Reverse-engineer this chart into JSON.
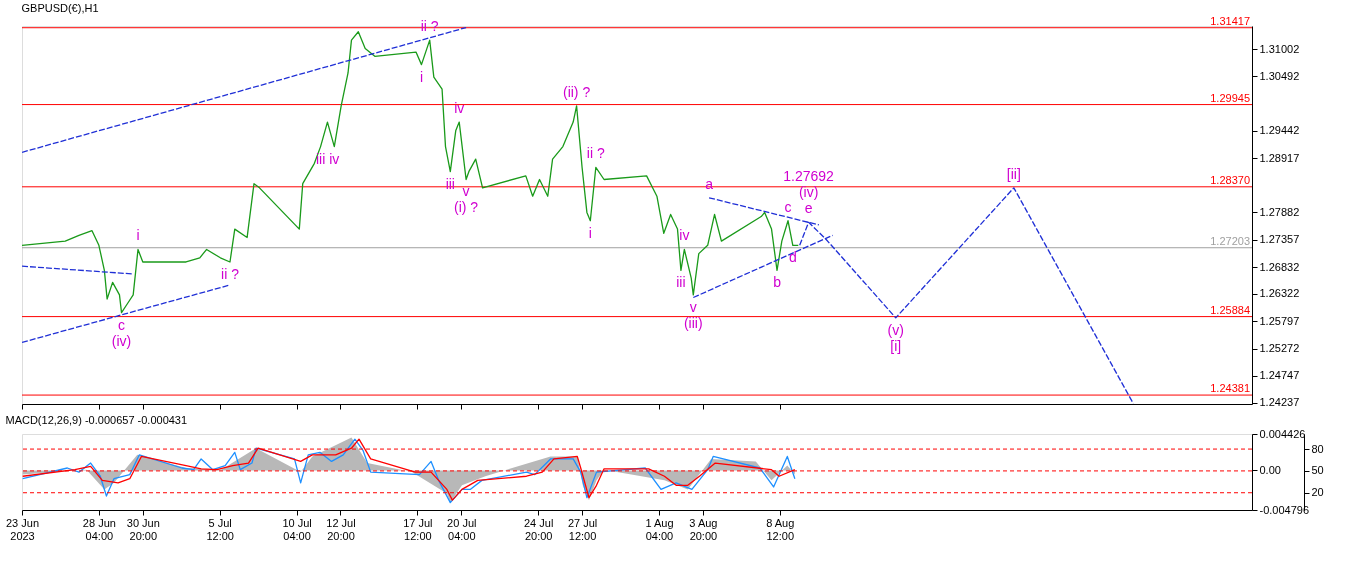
{
  "chart_data": [
    {
      "type": "line",
      "title": "GBPUSD(€),H1",
      "tick_labels": "y",
      "xlim": [
        "2023-06-23T12:00",
        "2023-09-06T04:00"
      ],
      "ylim": [
        1.2421,
        1.3145
      ],
      "xticks": [
        {
          "value": "2023-06-23T12:00",
          "label": null
        },
        {
          "value": "2023-06-28T04:00",
          "label": null
        },
        {
          "value": "2023-06-30T20:00",
          "label": null
        },
        {
          "value": "2023-07-05T12:00",
          "label": null
        },
        {
          "value": "2023-07-10T04:00",
          "label": null
        },
        {
          "value": "2023-07-12T20:00",
          "label": null
        },
        {
          "value": "2023-07-17T12:00",
          "label": null
        },
        {
          "value": "2023-07-20T04:00",
          "label": null
        },
        {
          "value": "2023-07-24T20:00",
          "label": null
        },
        {
          "value": "2023-07-27T12:00",
          "label": null
        },
        {
          "value": "2023-08-01T04:00",
          "label": null
        },
        {
          "value": "2023-08-03T20:00",
          "label": null
        },
        {
          "value": "2023-08-08T12:00",
          "label": null
        }
      ],
      "yticks": [
        1.31002,
        1.30492,
        1.29442,
        1.28917,
        1.27882,
        1.27357,
        1.26832,
        1.26322,
        1.25797,
        1.25272,
        1.24747,
        1.24237
      ],
      "series": [
        {
          "color": "#1a9a1a",
          "x": [
            "2023-06-23T12:00",
            "2023-06-26T03:00",
            "2023-06-26T23:00",
            "2023-06-27T18:00",
            "2023-06-28T04:00",
            "2023-06-28T12:00",
            "2023-06-28T16:00",
            "2023-06-29T00:00",
            "2023-06-29T10:00",
            "2023-06-29T13:00",
            "2023-06-29T22:00",
            "2023-06-30T06:00",
            "2023-06-30T13:00",
            "2023-06-30T20:00",
            "2023-07-03T11:00",
            "2023-07-04T07:00",
            "2023-07-04T17:00",
            "2023-07-05T13:00",
            "2023-07-06T03:00",
            "2023-07-06T10:00",
            "2023-07-07T04:00",
            "2023-07-07T14:00",
            "2023-07-07T22:00",
            "2023-07-10T08:00",
            "2023-07-10T13:00",
            "2023-07-11T06:00",
            "2023-07-11T15:00",
            "2023-07-12T01:00",
            "2023-07-12T11:00",
            "2023-07-12T21:00",
            "2023-07-13T07:00",
            "2023-07-13T12:00",
            "2023-07-13T22:00",
            "2023-07-14T08:00",
            "2023-07-14T22:00",
            "2023-07-17T10:00",
            "2023-07-17T18:00",
            "2023-07-18T06:00",
            "2023-07-18T12:00",
            "2023-07-19T00:00",
            "2023-07-19T05:00",
            "2023-07-19T12:00",
            "2023-07-19T20:00",
            "2023-07-20T01:00",
            "2023-07-20T11:00",
            "2023-07-20T15:00",
            "2023-07-21T01:00",
            "2023-07-21T11:00",
            "2023-07-24T02:00",
            "2023-07-24T12:00",
            "2023-07-24T22:00",
            "2023-07-25T10:00",
            "2023-07-25T17:00",
            "2023-07-26T08:00",
            "2023-07-26T23:00",
            "2023-07-27T04:00",
            "2023-07-27T12:00",
            "2023-07-27T19:00",
            "2023-07-28T00:00",
            "2023-07-28T08:00",
            "2023-07-28T20:00",
            "2023-07-31T10:00",
            "2023-08-01T01:00",
            "2023-08-01T11:00",
            "2023-08-01T21:00",
            "2023-08-02T07:00",
            "2023-08-02T12:00",
            "2023-08-02T17:00",
            "2023-08-03T03:00",
            "2023-08-03T06:00",
            "2023-08-03T14:00",
            "2023-08-04T03:00",
            "2023-08-04T13:00",
            "2023-08-04T23:00",
            "2023-08-07T09:00",
            "2023-08-07T14:00",
            "2023-08-08T00:00",
            "2023-08-08T08:00",
            "2023-08-08T15:00",
            "2023-08-09T00:00",
            "2023-08-09T07:00",
            "2023-08-09T15:00"
          ],
          "values": [
            1.2725,
            1.2733,
            1.2744,
            1.2753,
            1.2725,
            1.2677,
            1.2622,
            1.2654,
            1.263,
            1.2596,
            1.2614,
            1.263,
            1.2717,
            1.2693,
            1.2693,
            1.2701,
            1.2717,
            1.2701,
            1.2693,
            1.2756,
            1.274,
            1.2843,
            1.2835,
            1.2756,
            1.2843,
            1.2882,
            1.2914,
            1.2961,
            1.2914,
            1.2992,
            1.3055,
            1.3118,
            1.3134,
            1.3102,
            1.3087,
            1.3095,
            1.3071,
            1.3118,
            1.3047,
            1.3024,
            1.2914,
            1.2866,
            1.2945,
            1.2961,
            1.2851,
            1.2866,
            1.289,
            1.2835,
            1.2858,
            1.2819,
            1.2851,
            1.2819,
            1.289,
            1.2914,
            1.2961,
            1.2992,
            1.2874,
            1.2788,
            1.2772,
            1.2874,
            1.2851,
            1.2858,
            1.2819,
            1.2748,
            1.2784,
            1.2756,
            1.2677,
            1.2717,
            1.2662,
            1.263,
            1.2709,
            1.2725,
            1.2784,
            1.2733,
            1.278,
            1.2788,
            1.2756,
            1.2677,
            1.2733,
            1.2772,
            1.2725,
            1.2725
          ]
        },
        {
          "color": "#1f2fd6",
          "line_style": "dashed",
          "x": [
            "2023-08-09T17:00",
            "2023-08-10T06:00",
            "2023-08-11T07:00",
            "2023-08-15T13:00",
            "2023-08-22T17:00",
            "2023-08-29T23:00"
          ],
          "values": [
            1.2725,
            1.2769,
            1.2737,
            1.2586,
            1.2835,
            1.2422
          ]
        },
        {
          "color": "#1f2fd6",
          "line_style": "dashed",
          "x": [
            "2023-06-23T12:00",
            "2023-07-20T11:00"
          ],
          "values": [
            1.2903,
            1.3142
          ]
        },
        {
          "color": "#1f2fd6",
          "line_style": "dashed",
          "x": [
            "2023-06-23T12:00",
            "2023-06-30T06:00"
          ],
          "values": [
            1.2685,
            1.267
          ]
        },
        {
          "color": "#1f2fd6",
          "line_style": "dashed",
          "x": [
            "2023-06-23T12:00",
            "2023-07-06T03:00"
          ],
          "values": [
            1.2539,
            1.2649
          ]
        },
        {
          "color": "#1f2fd6",
          "line_style": "dashed",
          "x": [
            "2023-08-04T05:00",
            "2023-08-10T21:00"
          ],
          "values": [
            1.2816,
            1.2764
          ]
        },
        {
          "color": "#1f2fd6",
          "line_style": "dashed",
          "x": [
            "2023-08-03T06:00",
            "2023-08-11T17:00"
          ],
          "values": [
            1.2625,
            1.2744
          ]
        }
      ],
      "ref_lines": [
        {
          "axis": "y",
          "value": 1.31417,
          "label": "1.31417",
          "color": "#ff0000"
        },
        {
          "axis": "y",
          "value": 1.29945,
          "label": "1.29945",
          "color": "#ff0000"
        },
        {
          "axis": "y",
          "value": 1.2837,
          "label": "1.28370",
          "color": "#ff0000"
        },
        {
          "axis": "y",
          "value": 1.27203,
          "label": "1.27203",
          "color": "#a0a0a0"
        },
        {
          "axis": "y",
          "value": 1.25884,
          "label": "1.25884",
          "color": "#ff0000"
        },
        {
          "axis": "y",
          "value": 1.24381,
          "label": "1.24381",
          "color": "#ff0000"
        }
      ],
      "annotations": [
        {
          "text": "i",
          "x": "2023-06-30T13:00",
          "y": 1.2717
        },
        {
          "text": "ii ?",
          "x": "2023-07-06T03:00",
          "y": 1.2693
        },
        {
          "text": "c",
          "x": "2023-06-29T13:00",
          "y": 1.2596
        },
        {
          "text": "(iv)",
          "x": "2023-06-29T13:00",
          "y": 1.2596
        },
        {
          "text": "iii",
          "x": "2023-07-11T15:00",
          "y": 1.2914
        },
        {
          "text": "iv",
          "x": "2023-07-12T11:00",
          "y": 1.2914
        },
        {
          "text": "i",
          "x": "2023-07-17T18:00",
          "y": 1.3071
        },
        {
          "text": "ii ?",
          "x": "2023-07-18T06:00",
          "y": 1.3118
        },
        {
          "text": "iii",
          "x": "2023-07-19T12:00",
          "y": 1.2866
        },
        {
          "text": "iv",
          "x": "2023-07-20T01:00",
          "y": 1.2961
        },
        {
          "text": "v",
          "x": "2023-07-20T11:00",
          "y": 1.2851
        },
        {
          "text": "(i) ?",
          "x": "2023-07-20T11:00",
          "y": 1.2851
        },
        {
          "text": "(ii) ?",
          "x": "2023-07-27T04:00",
          "y": 1.2992
        },
        {
          "text": "i",
          "x": "2023-07-28T00:00",
          "y": 1.2772
        },
        {
          "text": "ii ?",
          "x": "2023-07-28T08:00",
          "y": 1.2874
        },
        {
          "text": "iii",
          "x": "2023-08-02T12:00",
          "y": 1.2677
        },
        {
          "text": "iv",
          "x": "2023-08-02T17:00",
          "y": 1.2717
        },
        {
          "text": "v",
          "x": "2023-08-03T06:00",
          "y": 1.263
        },
        {
          "text": "(iii)",
          "x": "2023-08-03T06:00",
          "y": 1.263
        },
        {
          "text": "a",
          "x": "2023-08-04T05:00",
          "y": 1.2816
        },
        {
          "text": "b",
          "x": "2023-08-08T08:00",
          "y": 1.2677
        },
        {
          "text": "c",
          "x": "2023-08-09T00:00",
          "y": 1.2772
        },
        {
          "text": "d",
          "x": "2023-08-09T07:00",
          "y": 1.2725
        },
        {
          "text": "e",
          "x": "2023-08-10T06:00",
          "y": 1.2769
        },
        {
          "text": "(iv)",
          "x": "2023-08-10T06:00",
          "y": 1.2769
        },
        {
          "text": "1.27692",
          "x": "2023-08-10T06:00",
          "y": 1.2769
        },
        {
          "text": "(v)",
          "x": "2023-08-15T13:00",
          "y": 1.2586
        },
        {
          "text": "[i]",
          "x": "2023-08-15T13:00",
          "y": 1.2586
        },
        {
          "text": "[ii]",
          "x": "2023-08-22T17:00",
          "y": 1.2835
        }
      ]
    },
    {
      "type": "line",
      "title": "MACD(12,26,9) -0.000657 -0.000431",
      "xlim": [
        "2023-06-23T12:00",
        "2023-09-06T04:00"
      ],
      "ylim": [
        -0.004796,
        0.004426
      ],
      "y2lim": [
        -3.7,
        100.7
      ],
      "xticks": [
        {
          "value": "2023-06-23T12:00",
          "label": "23 Jun 2023"
        },
        {
          "value": "2023-06-28T04:00",
          "label": "28 Jun 04:00"
        },
        {
          "value": "2023-06-30T20:00",
          "label": "30 Jun 20:00"
        },
        {
          "value": "2023-07-05T12:00",
          "label": "5 Jul 12:00"
        },
        {
          "value": "2023-07-10T04:00",
          "label": "10 Jul 04:00"
        },
        {
          "value": "2023-07-12T20:00",
          "label": "12 Jul 20:00"
        },
        {
          "value": "2023-07-17T12:00",
          "label": "17 Jul 12:00"
        },
        {
          "value": "2023-07-20T04:00",
          "label": "20 Jul 04:00"
        },
        {
          "value": "2023-07-24T20:00",
          "label": "24 Jul 20:00"
        },
        {
          "value": "2023-07-27T12:00",
          "label": "27 Jul 12:00"
        },
        {
          "value": "2023-08-01T04:00",
          "label": "1 Aug 04:00"
        },
        {
          "value": "2023-08-03T20:00",
          "label": "3 Aug 20:00"
        },
        {
          "value": "2023-08-08T12:00",
          "label": "8 Aug 12:00"
        }
      ],
      "yticks": [
        0.004426,
        {
          "value": 0,
          "label": "0.00"
        },
        -0.004796
      ],
      "y2ticks": [
        80,
        50,
        20
      ],
      "series": [
        {
          "type": "area",
          "color": "#b8b8b8",
          "x": [
            "2023-06-23T13:00",
            "2023-06-27T10:00",
            "2023-06-28T12:00",
            "2023-06-29T02:00",
            "2023-06-30T12:00",
            "2023-07-03T11:00",
            "2023-07-05T14:00",
            "2023-07-07T17:00",
            "2023-07-10T10:00",
            "2023-07-11T03:00",
            "2023-07-13T12:00",
            "2023-07-14T11:00",
            "2023-07-17T04:00",
            "2023-07-19T07:00",
            "2023-07-19T12:00",
            "2023-07-20T05:00",
            "2023-07-21T15:00",
            "2023-07-25T14:00",
            "2023-07-27T05:00",
            "2023-07-27T13:00",
            "2023-07-27T22:00",
            "2023-07-28T09:00",
            "2023-07-28T20:00",
            "2023-08-01T12:00",
            "2023-08-02T22:00",
            "2023-08-04T08:00",
            "2023-08-07T01:00",
            "2023-08-08T00:00",
            "2023-08-08T23:00",
            "2023-08-09T10:00"
          ],
          "values": [
            -0.0005,
            0.0001,
            -0.0023,
            -0.0015,
            0.0019,
            0.0003,
            0.0001,
            0.0027,
            -0.0002,
            0.0017,
            0.004,
            0.0009,
            -0.0002,
            -0.0028,
            -0.0039,
            -0.0018,
            -0.0007,
            0.0017,
            0.0017,
            -0.0018,
            -0.0036,
            -0.0012,
            0.0001,
            -0.0012,
            -0.0023,
            0.0014,
            0.0011,
            -0.0012,
            0.0006,
            -0.0005
          ]
        },
        {
          "color": "#1e90ff",
          "x": [
            "2023-06-23T13:00",
            "2023-06-26T06:00",
            "2023-06-26T23:00",
            "2023-06-27T16:00",
            "2023-06-28T06:00",
            "2023-06-28T15:00",
            "2023-06-29T02:00",
            "2023-06-30T01:00",
            "2023-06-30T15:00",
            "2023-07-03T05:00",
            "2023-07-03T22:00",
            "2023-07-04T09:00",
            "2023-07-05T02:00",
            "2023-07-05T20:00",
            "2023-07-06T10:00",
            "2023-07-06T18:00",
            "2023-07-07T11:00",
            "2023-07-07T17:00",
            "2023-07-10T01:00",
            "2023-07-10T10:00",
            "2023-07-10T21:00",
            "2023-07-11T14:00",
            "2023-07-12T07:00",
            "2023-07-13T00:00",
            "2023-07-13T17:00",
            "2023-07-14T05:00",
            "2023-07-14T16:00",
            "2023-07-17T15:00",
            "2023-07-18T08:00",
            "2023-07-18T19:00",
            "2023-07-19T12:00",
            "2023-07-20T05:00",
            "2023-07-20T17:00",
            "2023-07-21T10:00",
            "2023-07-24T03:00",
            "2023-07-24T15:00",
            "2023-07-25T14:00",
            "2023-07-26T23:00",
            "2023-07-27T10:00",
            "2023-07-27T19:00",
            "2023-07-28T09:00",
            "2023-07-31T08:00",
            "2023-08-01T07:00",
            "2023-08-02T05:00",
            "2023-08-03T04:00",
            "2023-08-04T03:00",
            "2023-08-04T11:00",
            "2023-08-07T07:00",
            "2023-08-08T03:00",
            "2023-08-08T23:00",
            "2023-08-09T10:00"
          ],
          "values": [
            -0.001,
            0.0003,
            -0.0002,
            0.0009,
            -0.0007,
            -0.0031,
            -0.001,
            -0.0005,
            0.0019,
            0.0003,
            0.0001,
            0.0014,
            0.0001,
            0.0006,
            0.0022,
            0.0001,
            0.0009,
            0.0027,
            0.0014,
            -0.0015,
            0.0019,
            0.0022,
            0.0011,
            0.0019,
            0.0038,
            0.0024,
            -0.0002,
            -0.0005,
            0.0011,
            -0.0012,
            -0.0039,
            -0.0023,
            -0.0023,
            -0.0012,
            -0.0002,
            -0.0005,
            0.0014,
            0.0014,
            -0.0002,
            -0.0033,
            -0.0002,
            0.0003,
            -0.0023,
            -0.0015,
            -0.0023,
            0.0001,
            0.0017,
            0.0003,
            -0.002,
            0.0017,
            -0.001
          ]
        },
        {
          "color": "#ff0000",
          "x": [
            "2023-06-23T13:00",
            "2023-06-26T17:00",
            "2023-06-27T16:00",
            "2023-06-28T09:00",
            "2023-06-29T08:00",
            "2023-06-30T01:00",
            "2023-06-30T18:00",
            "2023-07-03T11:00",
            "2023-07-04T09:00",
            "2023-07-05T08:00",
            "2023-07-06T07:00",
            "2023-07-07T06:00",
            "2023-07-07T20:00",
            "2023-07-10T10:00",
            "2023-07-11T03:00",
            "2023-07-12T13:00",
            "2023-07-13T12:00",
            "2023-07-13T23:00",
            "2023-07-14T16:00",
            "2023-07-17T09:00",
            "2023-07-18T08:00",
            "2023-07-19T07:00",
            "2023-07-19T15:00",
            "2023-07-20T05:00",
            "2023-07-21T04:00",
            "2023-07-24T03:00",
            "2023-07-25T02:00",
            "2023-07-25T19:00",
            "2023-07-27T05:00",
            "2023-07-27T10:00",
            "2023-07-27T22:00",
            "2023-07-28T09:00",
            "2023-07-28T20:00",
            "2023-07-31T13:00",
            "2023-08-01T12:00",
            "2023-08-02T05:00",
            "2023-08-02T22:00",
            "2023-08-03T15:00",
            "2023-08-04T14:00",
            "2023-08-08T00:00",
            "2023-08-08T11:00",
            "2023-08-09T10:00"
          ],
          "values": [
            -0.0007,
            0.0001,
            0.0005,
            -0.0012,
            -0.0015,
            -0.001,
            0.0017,
            0.0006,
            0.0002,
            0.0001,
            0.0006,
            0.0009,
            0.0027,
            0.0011,
            0.0019,
            0.0019,
            0.0027,
            0.0038,
            0.0014,
            -0.0002,
            -0.0002,
            -0.0023,
            -0.0036,
            -0.0023,
            -0.0012,
            -0.0007,
            -0.0002,
            0.0014,
            0.0017,
            0.0003,
            -0.0033,
            -0.0018,
            0.0002,
            0.0002,
            -0.0007,
            -0.0018,
            -0.0018,
            -0.0007,
            0.0009,
            0.0001,
            -0.0007,
            0.0001
          ]
        }
      ],
      "ref_lines": [
        {
          "axis": "y2",
          "value": 80,
          "color": "#ff0000",
          "line_style": "dashed"
        },
        {
          "axis": "y2",
          "value": 50,
          "color": "#ff0000",
          "line_style": "dashed"
        },
        {
          "axis": "y2",
          "value": 20,
          "color": "#ff0000",
          "line_style": "dashed"
        }
      ]
    }
  ]
}
